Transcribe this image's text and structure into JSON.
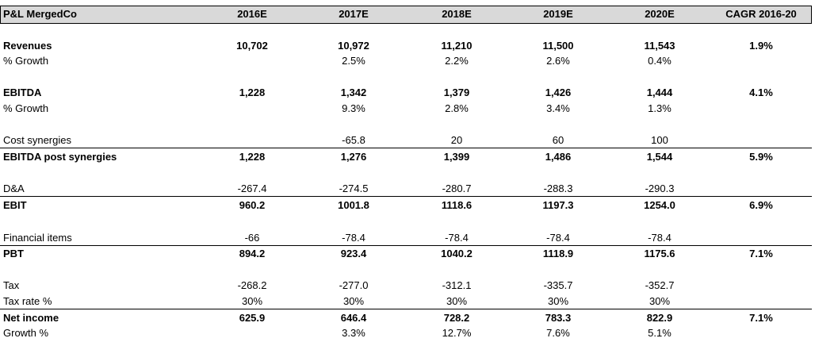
{
  "title": "P&L MergedCo",
  "columns": [
    "2016E",
    "2017E",
    "2018E",
    "2019E",
    "2020E",
    "CAGR 2016-20"
  ],
  "rows": [
    {
      "label": "Revenues",
      "bold": true,
      "values": [
        "10,702",
        "10,972",
        "11,210",
        "11,500",
        "11,543",
        "1.9%"
      ]
    },
    {
      "label": "% Growth",
      "bold": false,
      "values": [
        "",
        "2.5%",
        "2.2%",
        "2.6%",
        "0.4%",
        ""
      ]
    },
    {
      "label": "EBITDA",
      "bold": true,
      "values": [
        "1,228",
        "1,342",
        "1,379",
        "1,426",
        "1,444",
        "4.1%"
      ]
    },
    {
      "label": "% Growth",
      "bold": false,
      "values": [
        "",
        "9.3%",
        "2.8%",
        "3.4%",
        "1.3%",
        ""
      ]
    },
    {
      "label": "Cost synergies",
      "bold": false,
      "values": [
        "",
        "-65.8",
        "20",
        "60",
        "100",
        ""
      ]
    },
    {
      "label": "EBITDA post synergies",
      "bold": true,
      "values": [
        "1,228",
        "1,276",
        "1,399",
        "1,486",
        "1,544",
        "5.9%"
      ]
    },
    {
      "label": "D&A",
      "bold": false,
      "values": [
        "-267.4",
        "-274.5",
        "-280.7",
        "-288.3",
        "-290.3",
        ""
      ]
    },
    {
      "label": "EBIT",
      "bold": true,
      "values": [
        "960.2",
        "1001.8",
        "1118.6",
        "1197.3",
        "1254.0",
        "6.9%"
      ]
    },
    {
      "label": "Financial items",
      "bold": false,
      "values": [
        "-66",
        "-78.4",
        "-78.4",
        "-78.4",
        "-78.4",
        ""
      ]
    },
    {
      "label": "PBT",
      "bold": true,
      "values": [
        "894.2",
        "923.4",
        "1040.2",
        "1118.9",
        "1175.6",
        "7.1%"
      ]
    },
    {
      "label": "Tax",
      "bold": false,
      "values": [
        "-268.2",
        "-277.0",
        "-312.1",
        "-335.7",
        "-352.7",
        ""
      ]
    },
    {
      "label": "Tax rate %",
      "bold": false,
      "values": [
        "30%",
        "30%",
        "30%",
        "30%",
        "30%",
        ""
      ]
    },
    {
      "label": "Net income",
      "bold": true,
      "values": [
        "625.9",
        "646.4",
        "728.2",
        "783.3",
        "822.9",
        "7.1%"
      ]
    },
    {
      "label": "Growth %",
      "bold": false,
      "values": [
        "",
        "3.3%",
        "12.7%",
        "7.6%",
        "5.1%",
        ""
      ]
    }
  ]
}
